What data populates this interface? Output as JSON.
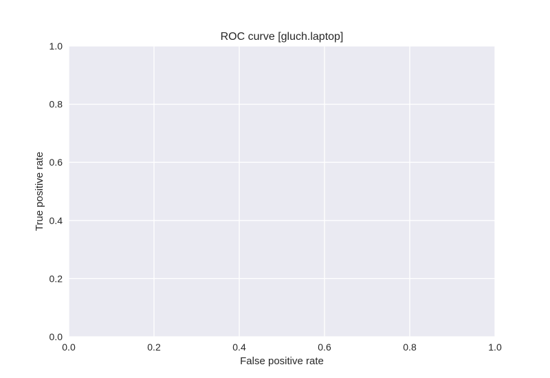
{
  "chart_data": {
    "type": "line",
    "title": "ROC curve [gluch.laptop]",
    "xlabel": "False positive rate",
    "ylabel": "True positive rate",
    "xlim": [
      0,
      1
    ],
    "ylim": [
      0,
      1
    ],
    "x_ticks": [
      0,
      0.2,
      0.4,
      0.6,
      0.8,
      1
    ],
    "y_ticks": [
      0,
      0.2,
      0.4,
      0.6,
      0.8,
      1
    ],
    "x_tick_labels": [
      "0.0",
      "0.2",
      "0.4",
      "0.6",
      "0.8",
      "1.0"
    ],
    "y_tick_labels": [
      "0.0",
      "0.2",
      "0.4",
      "0.6",
      "0.8",
      "1.0"
    ],
    "grid": true,
    "series": [],
    "colors": {
      "plot_background": "#eaeaf2",
      "grid": "#ffffff",
      "text": "#262626"
    }
  }
}
